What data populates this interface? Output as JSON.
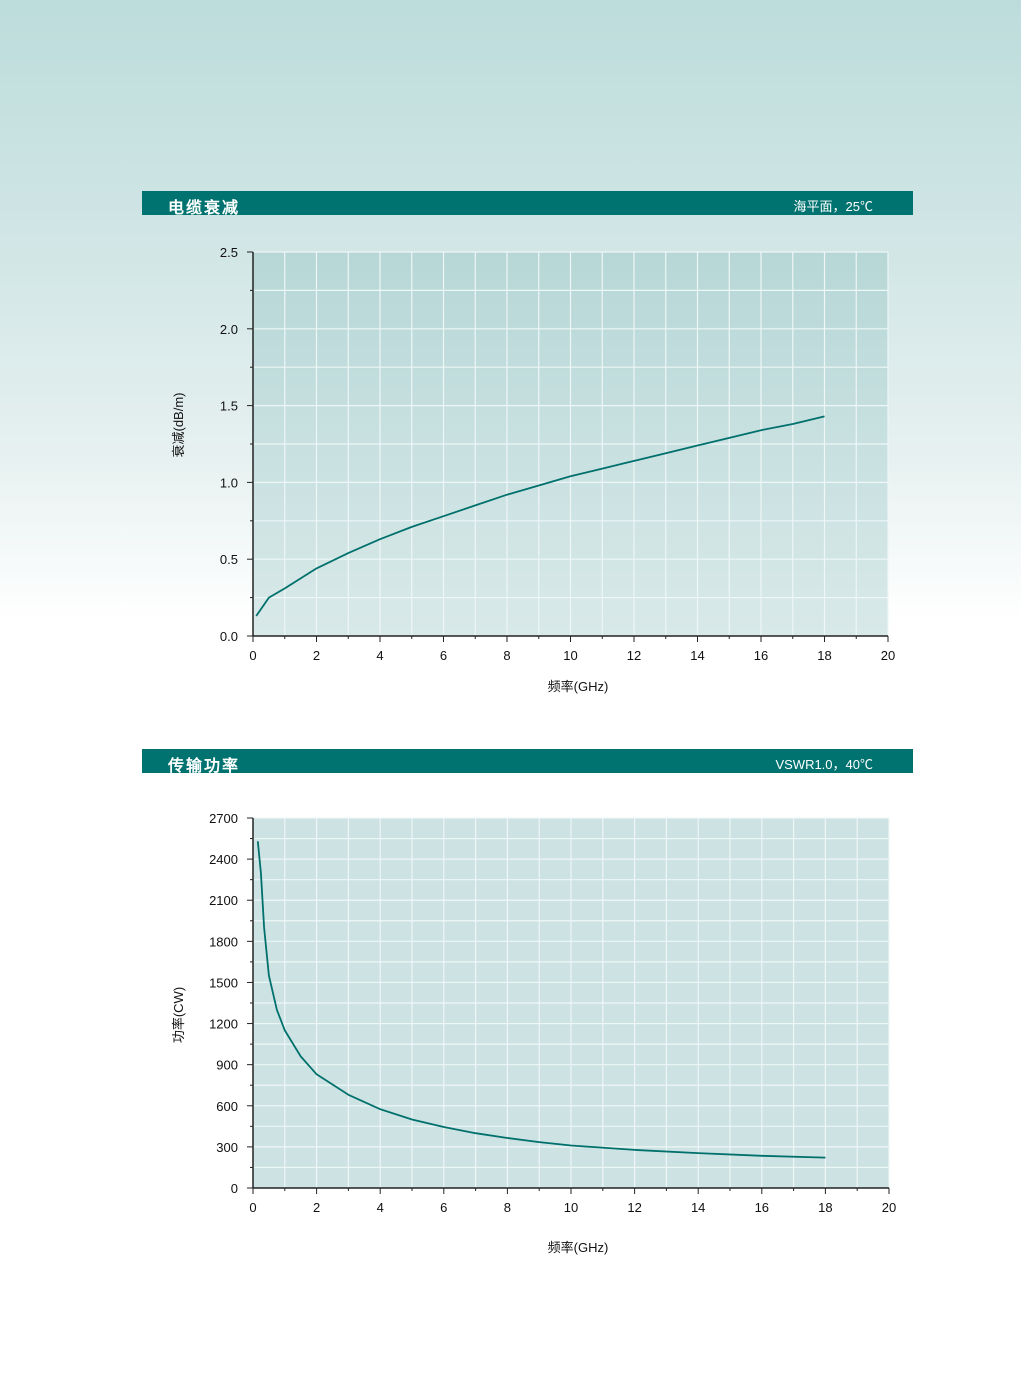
{
  "colors": {
    "header_bar": "#007370",
    "curve": "#00706c",
    "plot_bg": "#c6e0e0",
    "grid": "#eef6f6"
  },
  "sections": [
    {
      "title": "电缆衰减",
      "condition": "海平面，25℃"
    },
    {
      "title": "传输功率",
      "condition": "VSWR1.0，40℃"
    }
  ],
  "chart_data": [
    {
      "type": "line",
      "xlabel": "频率(GHz)",
      "ylabel": "衰减(dB/m)",
      "xlim": [
        0,
        20
      ],
      "ylim": [
        0,
        2.5
      ],
      "xticks": [
        0,
        2,
        4,
        6,
        8,
        10,
        12,
        14,
        16,
        18,
        20
      ],
      "yticks": [
        0.0,
        0.5,
        1.0,
        1.5,
        2.0,
        2.5
      ],
      "ytick_labels": [
        "0.0",
        "0.5",
        "1.0",
        "1.5",
        "2.0",
        "2.5"
      ],
      "grid": true,
      "x": [
        0.1,
        0.5,
        1,
        2,
        3,
        4,
        5,
        6,
        7,
        8,
        9,
        10,
        11,
        12,
        13,
        14,
        15,
        16,
        17,
        18
      ],
      "y": [
        0.13,
        0.25,
        0.31,
        0.44,
        0.54,
        0.63,
        0.71,
        0.78,
        0.85,
        0.92,
        0.98,
        1.04,
        1.09,
        1.14,
        1.19,
        1.24,
        1.29,
        1.34,
        1.38,
        1.43
      ]
    },
    {
      "type": "line",
      "xlabel": "频率(GHz)",
      "ylabel": "功率(CW)",
      "xlim": [
        0,
        20
      ],
      "ylim": [
        0,
        2700
      ],
      "xticks": [
        0,
        2,
        4,
        6,
        8,
        10,
        12,
        14,
        16,
        18,
        20
      ],
      "yticks": [
        0,
        300,
        600,
        900,
        1200,
        1500,
        1800,
        2100,
        2400,
        2700
      ],
      "ytick_labels": [
        "0",
        "300",
        "600",
        "900",
        "1200",
        "1500",
        "1800",
        "2100",
        "2400",
        "2700"
      ],
      "grid": true,
      "x": [
        0.15,
        0.25,
        0.35,
        0.5,
        0.75,
        1,
        1.5,
        2,
        3,
        4,
        5,
        6,
        7,
        8,
        9,
        10,
        12,
        14,
        16,
        18
      ],
      "y": [
        2530,
        2300,
        1900,
        1550,
        1300,
        1150,
        960,
        830,
        680,
        575,
        500,
        445,
        400,
        365,
        335,
        310,
        278,
        255,
        235,
        222
      ]
    }
  ]
}
